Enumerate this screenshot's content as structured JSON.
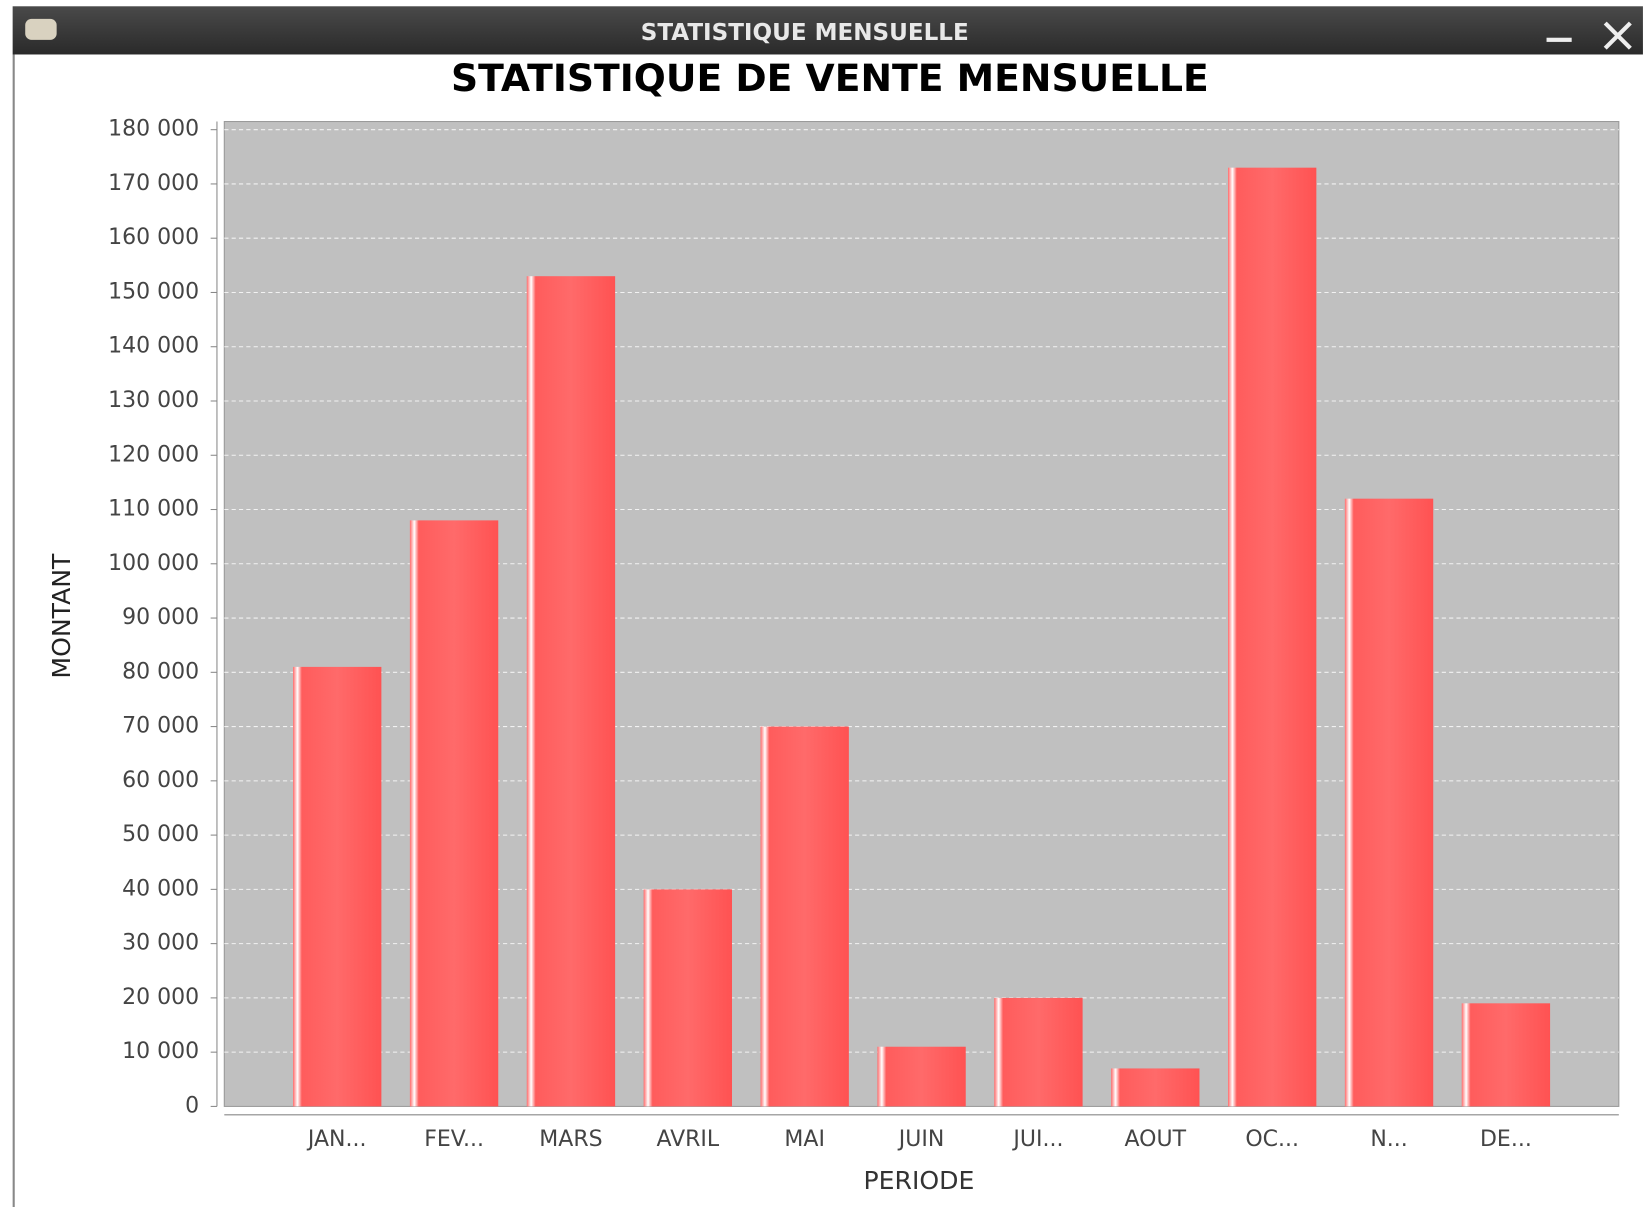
{
  "window": {
    "title": "STATISTIQUE MENSUELLE"
  },
  "chart_data": {
    "type": "bar",
    "title": "STATISTIQUE DE VENTE MENSUELLE",
    "x_label": "PERIODE",
    "y_label": "MONTANT",
    "categories": [
      "JAN...",
      "FEV...",
      "MARS",
      "AVRIL",
      "MAI",
      "JUIN",
      "JUI...",
      "AOUT",
      "OC...",
      "N...",
      "DE..."
    ],
    "values": [
      81000,
      108000,
      153000,
      40000,
      70000,
      11000,
      20000,
      7000,
      173000,
      112000,
      19000
    ],
    "color": "#ff5c5c",
    "ylim": [
      0,
      181500
    ],
    "yticks": [
      0,
      {
        "value": 10000,
        "label": "10 000"
      },
      {
        "value": 20000,
        "label": "20 000"
      },
      {
        "value": 30000,
        "label": "30 000"
      },
      {
        "value": 40000,
        "label": "40 000"
      },
      {
        "value": 50000,
        "label": "50 000"
      },
      {
        "value": 60000,
        "label": "60 000"
      },
      {
        "value": 70000,
        "label": "70 000"
      },
      {
        "value": 80000,
        "label": "80 000"
      },
      {
        "value": 90000,
        "label": "90 000"
      },
      {
        "value": 100000,
        "label": "100 000"
      },
      {
        "value": 110000,
        "label": "110 000"
      },
      {
        "value": 120000,
        "label": "120 000"
      },
      {
        "value": 130000,
        "label": "130 000"
      },
      {
        "value": 140000,
        "label": "140 000"
      },
      {
        "value": 150000,
        "label": "150 000"
      },
      {
        "value": 160000,
        "label": "160 000"
      },
      {
        "value": 170000,
        "label": "170 000"
      },
      {
        "value": 180000,
        "label": "180 000"
      }
    ],
    "grid": true
  }
}
